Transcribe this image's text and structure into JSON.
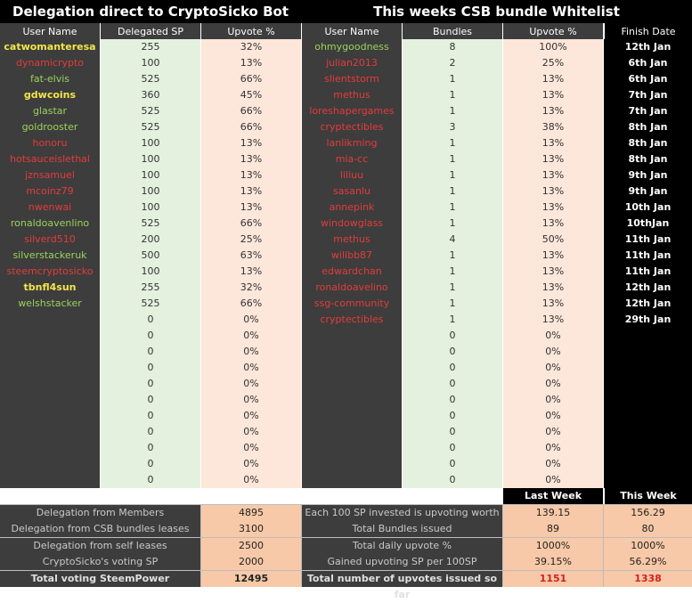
{
  "banners": {
    "left": "Delegation direct to CryptoSicko Bot",
    "right": "This weeks CSB bundle Whitelist"
  },
  "headers": {
    "user_name": "User Name",
    "delegated_sp": "Delegated SP",
    "upvote_pct": "Upvote %",
    "user_name_2": "User Name",
    "bundles": "Bundles",
    "upvote_pct_2": "Upvote %",
    "finish_date": "Finish Date"
  },
  "colors": {
    "yellow": "#f2e64a",
    "green": "#9ad25a",
    "red": "#e53b3b",
    "dark": "#3d3d3d",
    "light_green": "#e4f1de",
    "peach": "#fde6da",
    "sum_peach": "#f7c9a8"
  },
  "delegations": [
    {
      "user": "catwomanteresa",
      "color": "yellow",
      "sp": "255",
      "pct": "32%"
    },
    {
      "user": "dynamicrypto",
      "color": "red",
      "sp": "100",
      "pct": "13%"
    },
    {
      "user": "fat-elvis",
      "color": "green",
      "sp": "525",
      "pct": "66%"
    },
    {
      "user": "gdwcoins",
      "color": "yellow",
      "sp": "360",
      "pct": "45%"
    },
    {
      "user": "glastar",
      "color": "green",
      "sp": "525",
      "pct": "66%"
    },
    {
      "user": "goldrooster",
      "color": "green",
      "sp": "525",
      "pct": "66%"
    },
    {
      "user": "honoru",
      "color": "red",
      "sp": "100",
      "pct": "13%"
    },
    {
      "user": "hotsauceislethal",
      "color": "red",
      "sp": "100",
      "pct": "13%"
    },
    {
      "user": "jznsamuel",
      "color": "red",
      "sp": "100",
      "pct": "13%"
    },
    {
      "user": "mcoinz79",
      "color": "red",
      "sp": "100",
      "pct": "13%"
    },
    {
      "user": "nwenwai",
      "color": "red",
      "sp": "100",
      "pct": "13%"
    },
    {
      "user": "ronaldoavenlino",
      "color": "green",
      "sp": "525",
      "pct": "66%"
    },
    {
      "user": "silverd510",
      "color": "red",
      "sp": "200",
      "pct": "25%"
    },
    {
      "user": "silverstackeruk",
      "color": "green",
      "sp": "500",
      "pct": "63%"
    },
    {
      "user": "steemcryptosicko",
      "color": "red",
      "sp": "100",
      "pct": "13%"
    },
    {
      "user": "tbnfl4sun",
      "color": "yellow",
      "sp": "255",
      "pct": "32%"
    },
    {
      "user": "welshstacker",
      "color": "green",
      "sp": "525",
      "pct": "66%"
    },
    {
      "user": "",
      "color": "red",
      "sp": "0",
      "pct": "0%"
    },
    {
      "user": "",
      "color": "red",
      "sp": "0",
      "pct": "0%"
    },
    {
      "user": "",
      "color": "red",
      "sp": "0",
      "pct": "0%"
    },
    {
      "user": "",
      "color": "red",
      "sp": "0",
      "pct": "0%"
    },
    {
      "user": "",
      "color": "red",
      "sp": "0",
      "pct": "0%"
    },
    {
      "user": "",
      "color": "red",
      "sp": "0",
      "pct": "0%"
    },
    {
      "user": "",
      "color": "red",
      "sp": "0",
      "pct": "0%"
    },
    {
      "user": "",
      "color": "red",
      "sp": "0",
      "pct": "0%"
    },
    {
      "user": "",
      "color": "red",
      "sp": "0",
      "pct": "0%"
    },
    {
      "user": "",
      "color": "red",
      "sp": "0",
      "pct": "0%"
    },
    {
      "user": "",
      "color": "red",
      "sp": "0",
      "pct": "0%"
    }
  ],
  "bundles": [
    {
      "user": "ohmygoodness",
      "color": "green",
      "count": "8",
      "pct": "100%",
      "date": "12th Jan"
    },
    {
      "user": "julian2013",
      "color": "red",
      "count": "2",
      "pct": "25%",
      "date": "6th Jan"
    },
    {
      "user": "slientstorm",
      "color": "red",
      "count": "1",
      "pct": "13%",
      "date": "6th Jan"
    },
    {
      "user": "methus",
      "color": "red",
      "count": "1",
      "pct": "13%",
      "date": "7th Jan"
    },
    {
      "user": "loreshapergames",
      "color": "red",
      "count": "1",
      "pct": "13%",
      "date": "7th Jan"
    },
    {
      "user": "cryptectibles",
      "color": "red",
      "count": "3",
      "pct": "38%",
      "date": "8th Jan"
    },
    {
      "user": "lanlikming",
      "color": "red",
      "count": "1",
      "pct": "13%",
      "date": "8th Jan"
    },
    {
      "user": "mia-cc",
      "color": "red",
      "count": "1",
      "pct": "13%",
      "date": "8th Jan"
    },
    {
      "user": "liliuu",
      "color": "red",
      "count": "1",
      "pct": "13%",
      "date": "9th Jan"
    },
    {
      "user": "sasanlu",
      "color": "red",
      "count": "1",
      "pct": "13%",
      "date": "9th Jan"
    },
    {
      "user": "annepink",
      "color": "red",
      "count": "1",
      "pct": "13%",
      "date": "10th Jan"
    },
    {
      "user": "windowglass",
      "color": "red",
      "count": "1",
      "pct": "13%",
      "date": "10thJan"
    },
    {
      "user": "methus",
      "color": "red",
      "count": "4",
      "pct": "50%",
      "date": "11th Jan"
    },
    {
      "user": "willbb87",
      "color": "red",
      "count": "1",
      "pct": "13%",
      "date": "11th Jan"
    },
    {
      "user": "edwardchan",
      "color": "red",
      "count": "1",
      "pct": "13%",
      "date": "11th Jan"
    },
    {
      "user": "ronaldoavelino",
      "color": "red",
      "count": "1",
      "pct": "13%",
      "date": "12th Jan"
    },
    {
      "user": "ssg-community",
      "color": "red",
      "count": "1",
      "pct": "13%",
      "date": "12th Jan"
    },
    {
      "user": "cryptectibles",
      "color": "red",
      "count": "1",
      "pct": "13%",
      "date": "29th Jan"
    },
    {
      "user": "",
      "color": "red",
      "count": "0",
      "pct": "0%",
      "date": ""
    },
    {
      "user": "",
      "color": "red",
      "count": "0",
      "pct": "0%",
      "date": ""
    },
    {
      "user": "",
      "color": "red",
      "count": "0",
      "pct": "0%",
      "date": ""
    },
    {
      "user": "",
      "color": "red",
      "count": "0",
      "pct": "0%",
      "date": ""
    },
    {
      "user": "",
      "color": "red",
      "count": "0",
      "pct": "0%",
      "date": ""
    },
    {
      "user": "",
      "color": "red",
      "count": "0",
      "pct": "0%",
      "date": ""
    },
    {
      "user": "",
      "color": "red",
      "count": "0",
      "pct": "0%",
      "date": ""
    },
    {
      "user": "",
      "color": "red",
      "count": "0",
      "pct": "0%",
      "date": ""
    },
    {
      "user": "",
      "color": "red",
      "count": "0",
      "pct": "0%",
      "date": ""
    },
    {
      "user": "",
      "color": "red",
      "count": "0",
      "pct": "0%",
      "date": ""
    }
  ],
  "week_headers": {
    "last": "Last Week",
    "this": "This Week"
  },
  "summary_left": [
    {
      "label": "Delegation from Members",
      "value": "4895"
    },
    {
      "label": "Delegation from CSB bundles leases",
      "value": "3100"
    },
    {
      "label": "Delegation from self leases",
      "value": "2500"
    },
    {
      "label": "CryptoSicko's voting SP",
      "value": "2000"
    },
    {
      "label": "Total voting SteemPower",
      "value": "12495"
    }
  ],
  "summary_right": [
    {
      "label": "Each 100 SP invested is upvoting worth",
      "last": "139.15",
      "this": "156.29"
    },
    {
      "label": "Total Bundles issued",
      "last": "89",
      "this": "80"
    },
    {
      "label": "Total daily upvote %",
      "last": "1000%",
      "this": "1000%"
    },
    {
      "label": "Gained upvoting SP per 100SP",
      "last": "39.15%",
      "this": "56.29%"
    },
    {
      "label": "Total number of upvotes issued so far",
      "last": "1151",
      "this": "1338"
    }
  ]
}
